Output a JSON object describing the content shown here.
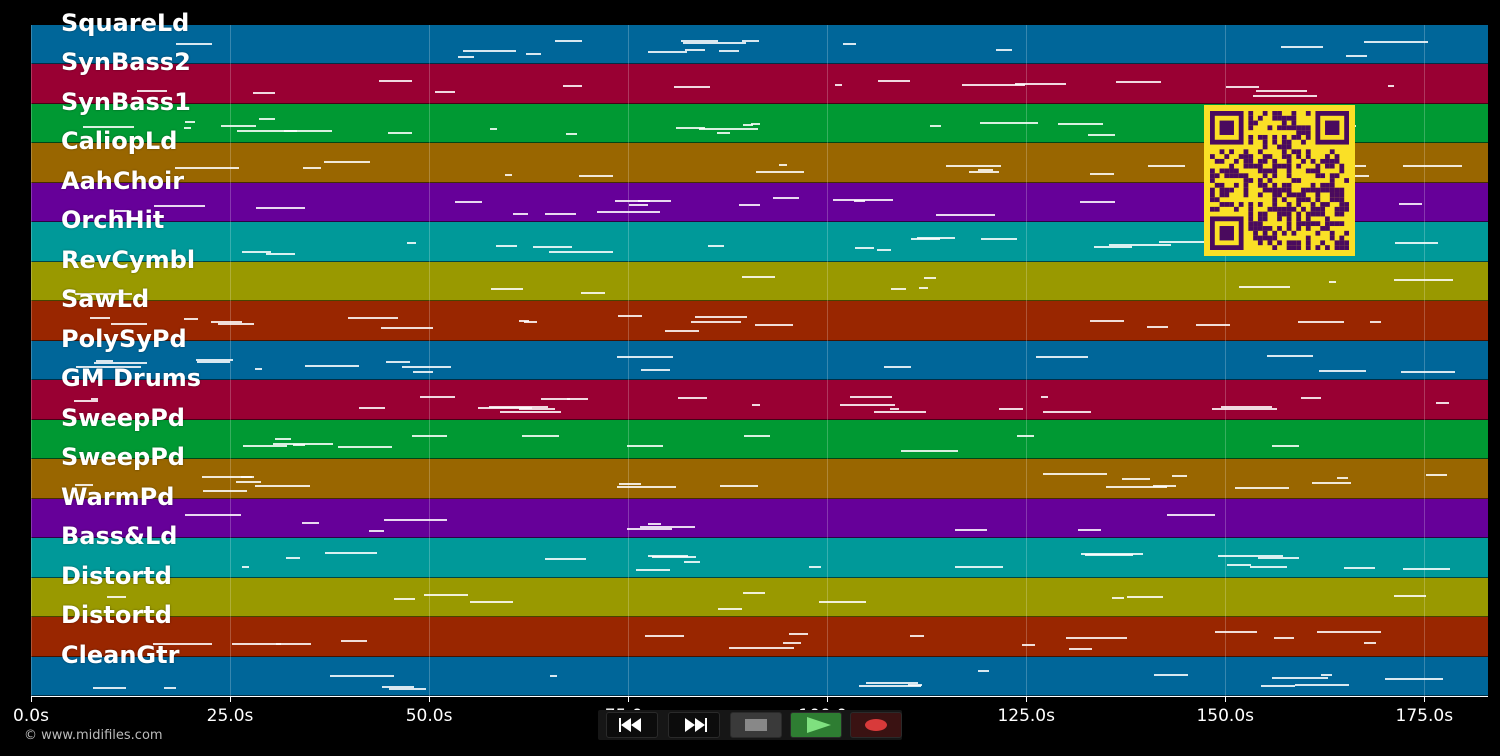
{
  "tracks": [
    {
      "name": "SquareLd",
      "color": "#006699"
    },
    {
      "name": "SynBass2",
      "color": "#990033"
    },
    {
      "name": "SynBass1",
      "color": "#009933"
    },
    {
      "name": "CaliopLd",
      "color": "#996600"
    },
    {
      "name": "AahChoir",
      "color": "#660099"
    },
    {
      "name": "OrchHit",
      "color": "#009999"
    },
    {
      "name": "RevCymbl",
      "color": "#999900"
    },
    {
      "name": "SawLd",
      "color": "#992600"
    },
    {
      "name": "PolySyPd",
      "color": "#006699"
    },
    {
      "name": "GM Drums",
      "color": "#990033"
    },
    {
      "name": "SweepPd",
      "color": "#009933"
    },
    {
      "name": "SweepPd",
      "color": "#996600"
    },
    {
      "name": "WarmPd",
      "color": "#660099"
    },
    {
      "name": "Bass&Ld",
      "color": "#009999"
    },
    {
      "name": "Distortd",
      "color": "#999900"
    },
    {
      "name": "Distortd",
      "color": "#992600"
    },
    {
      "name": "CleanGtr",
      "color": "#006699"
    }
  ],
  "timeline": {
    "ticks": [
      {
        "seconds": 0,
        "label": "0.0s"
      },
      {
        "seconds": 25,
        "label": "25.0s"
      },
      {
        "seconds": 50,
        "label": "50.0s"
      },
      {
        "seconds": 75,
        "label": "75.0s"
      },
      {
        "seconds": 100,
        "label": "100.0s"
      },
      {
        "seconds": 125,
        "label": "125.0s"
      },
      {
        "seconds": 150,
        "label": "150.0s"
      },
      {
        "seconds": 175,
        "label": "175.0s"
      }
    ],
    "max_seconds": 183
  },
  "transport": {
    "rewind_icon": "rewind-icon",
    "fast_forward_icon": "fast-forward-icon",
    "stop_icon": "stop-icon",
    "play_icon": "play-icon",
    "record_icon": "record-icon",
    "play_color": "#2e7d32",
    "record_color": "#d83a3a"
  },
  "footer": {
    "copyright": "© www.midifiles.com"
  },
  "qr_code": {
    "color": "#fae026",
    "module_color": "#4a0a5e"
  }
}
